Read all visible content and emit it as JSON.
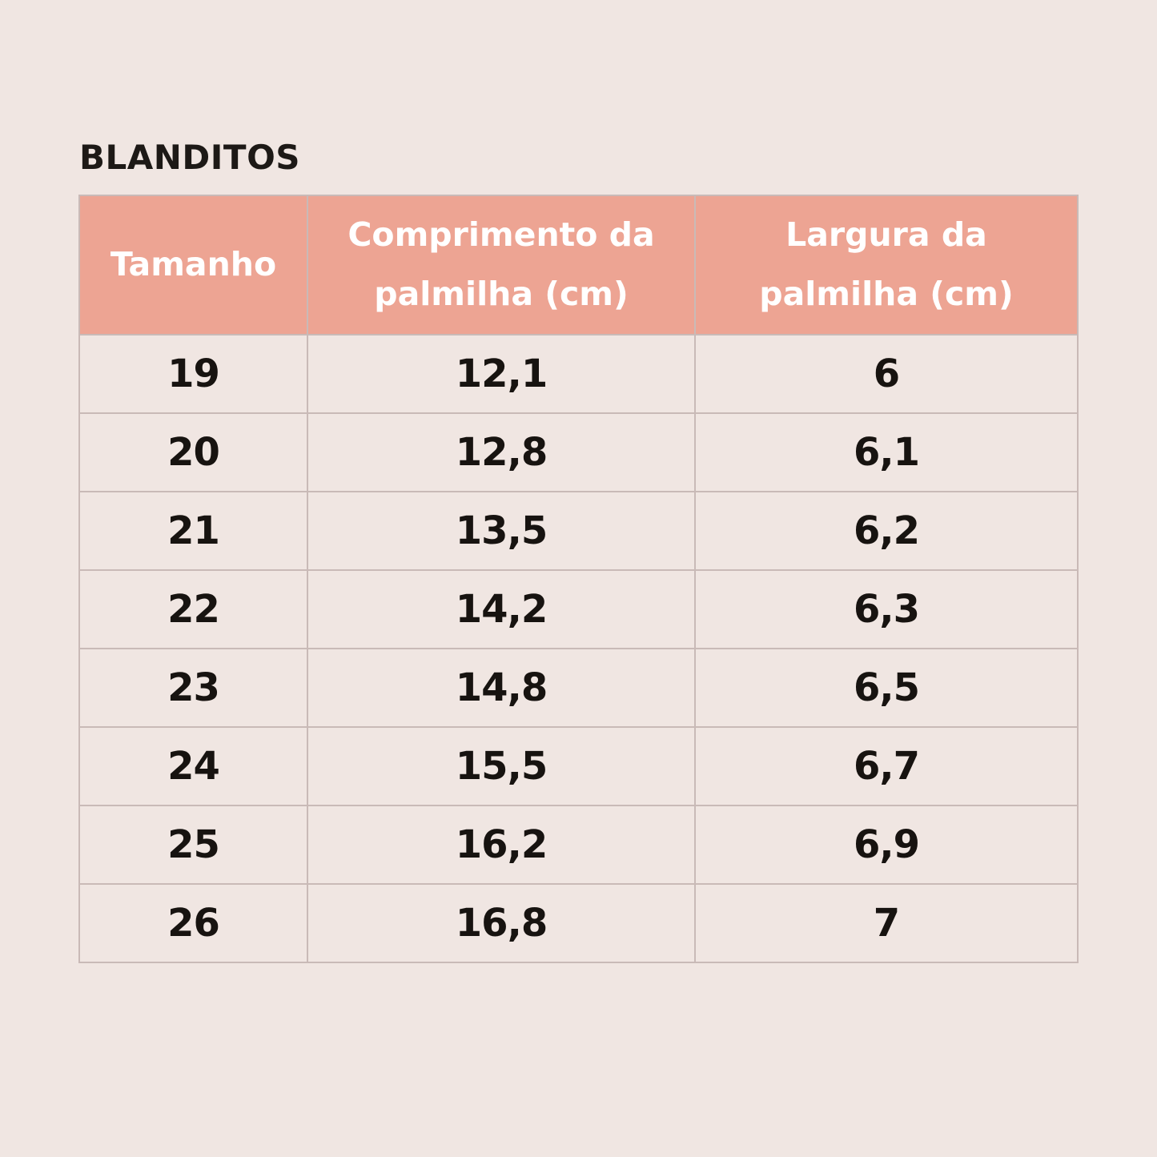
{
  "title": "BLANDITOS",
  "colors": {
    "background": "#f0e6e2",
    "header_bg": "#eda493",
    "header_text": "#ffffff",
    "border": "#c9bab7",
    "body_text": "#171310"
  },
  "table": {
    "columns": [
      "Tamanho",
      "Comprimento da palmilha (cm)",
      "Largura da palmilha (cm)"
    ],
    "rows": [
      [
        "19",
        "12,1",
        "6"
      ],
      [
        "20",
        "12,8",
        "6,1"
      ],
      [
        "21",
        "13,5",
        "6,2"
      ],
      [
        "22",
        "14,2",
        "6,3"
      ],
      [
        "23",
        "14,8",
        "6,5"
      ],
      [
        "24",
        "15,5",
        "6,7"
      ],
      [
        "25",
        "16,2",
        "6,9"
      ],
      [
        "26",
        "16,8",
        "7"
      ]
    ]
  },
  "chart_data": {
    "type": "table",
    "title": "BLANDITOS",
    "columns": [
      "Tamanho",
      "Comprimento da palmilha (cm)",
      "Largura da palmilha (cm)"
    ],
    "rows": [
      [
        19,
        12.1,
        6.0
      ],
      [
        20,
        12.8,
        6.1
      ],
      [
        21,
        13.5,
        6.2
      ],
      [
        22,
        14.2,
        6.3
      ],
      [
        23,
        14.8,
        6.5
      ],
      [
        24,
        15.5,
        6.7
      ],
      [
        25,
        16.2,
        6.9
      ],
      [
        26,
        16.8,
        7.0
      ]
    ],
    "notes": "decimal comma formatting as displayed; sizes 19-26"
  }
}
